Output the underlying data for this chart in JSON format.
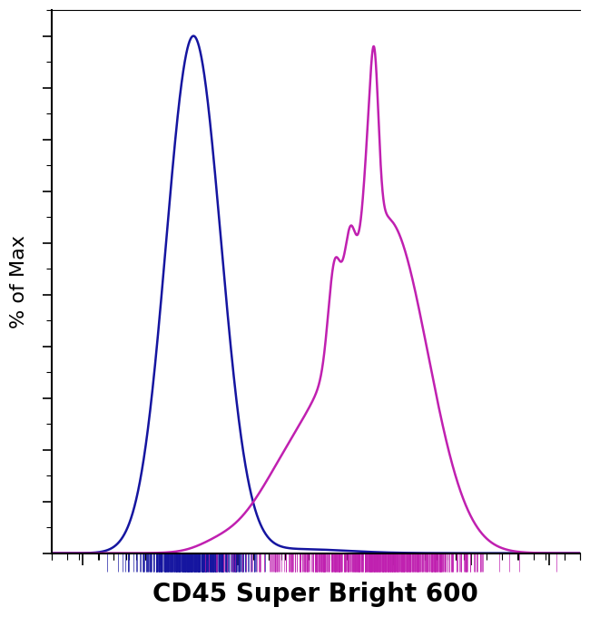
{
  "xlabel": "CD45 Super Bright 600",
  "ylabel": "% of Max",
  "blue_color": "#1515a0",
  "magenta_color": "#c020b0",
  "line_width": 1.8,
  "background_color": "#ffffff",
  "xlim": [
    2.3,
    5.7
  ],
  "ylim": [
    0,
    105
  ],
  "xlabel_fontsize": 20,
  "ylabel_fontsize": 16,
  "ylabel_text": "% of Max"
}
